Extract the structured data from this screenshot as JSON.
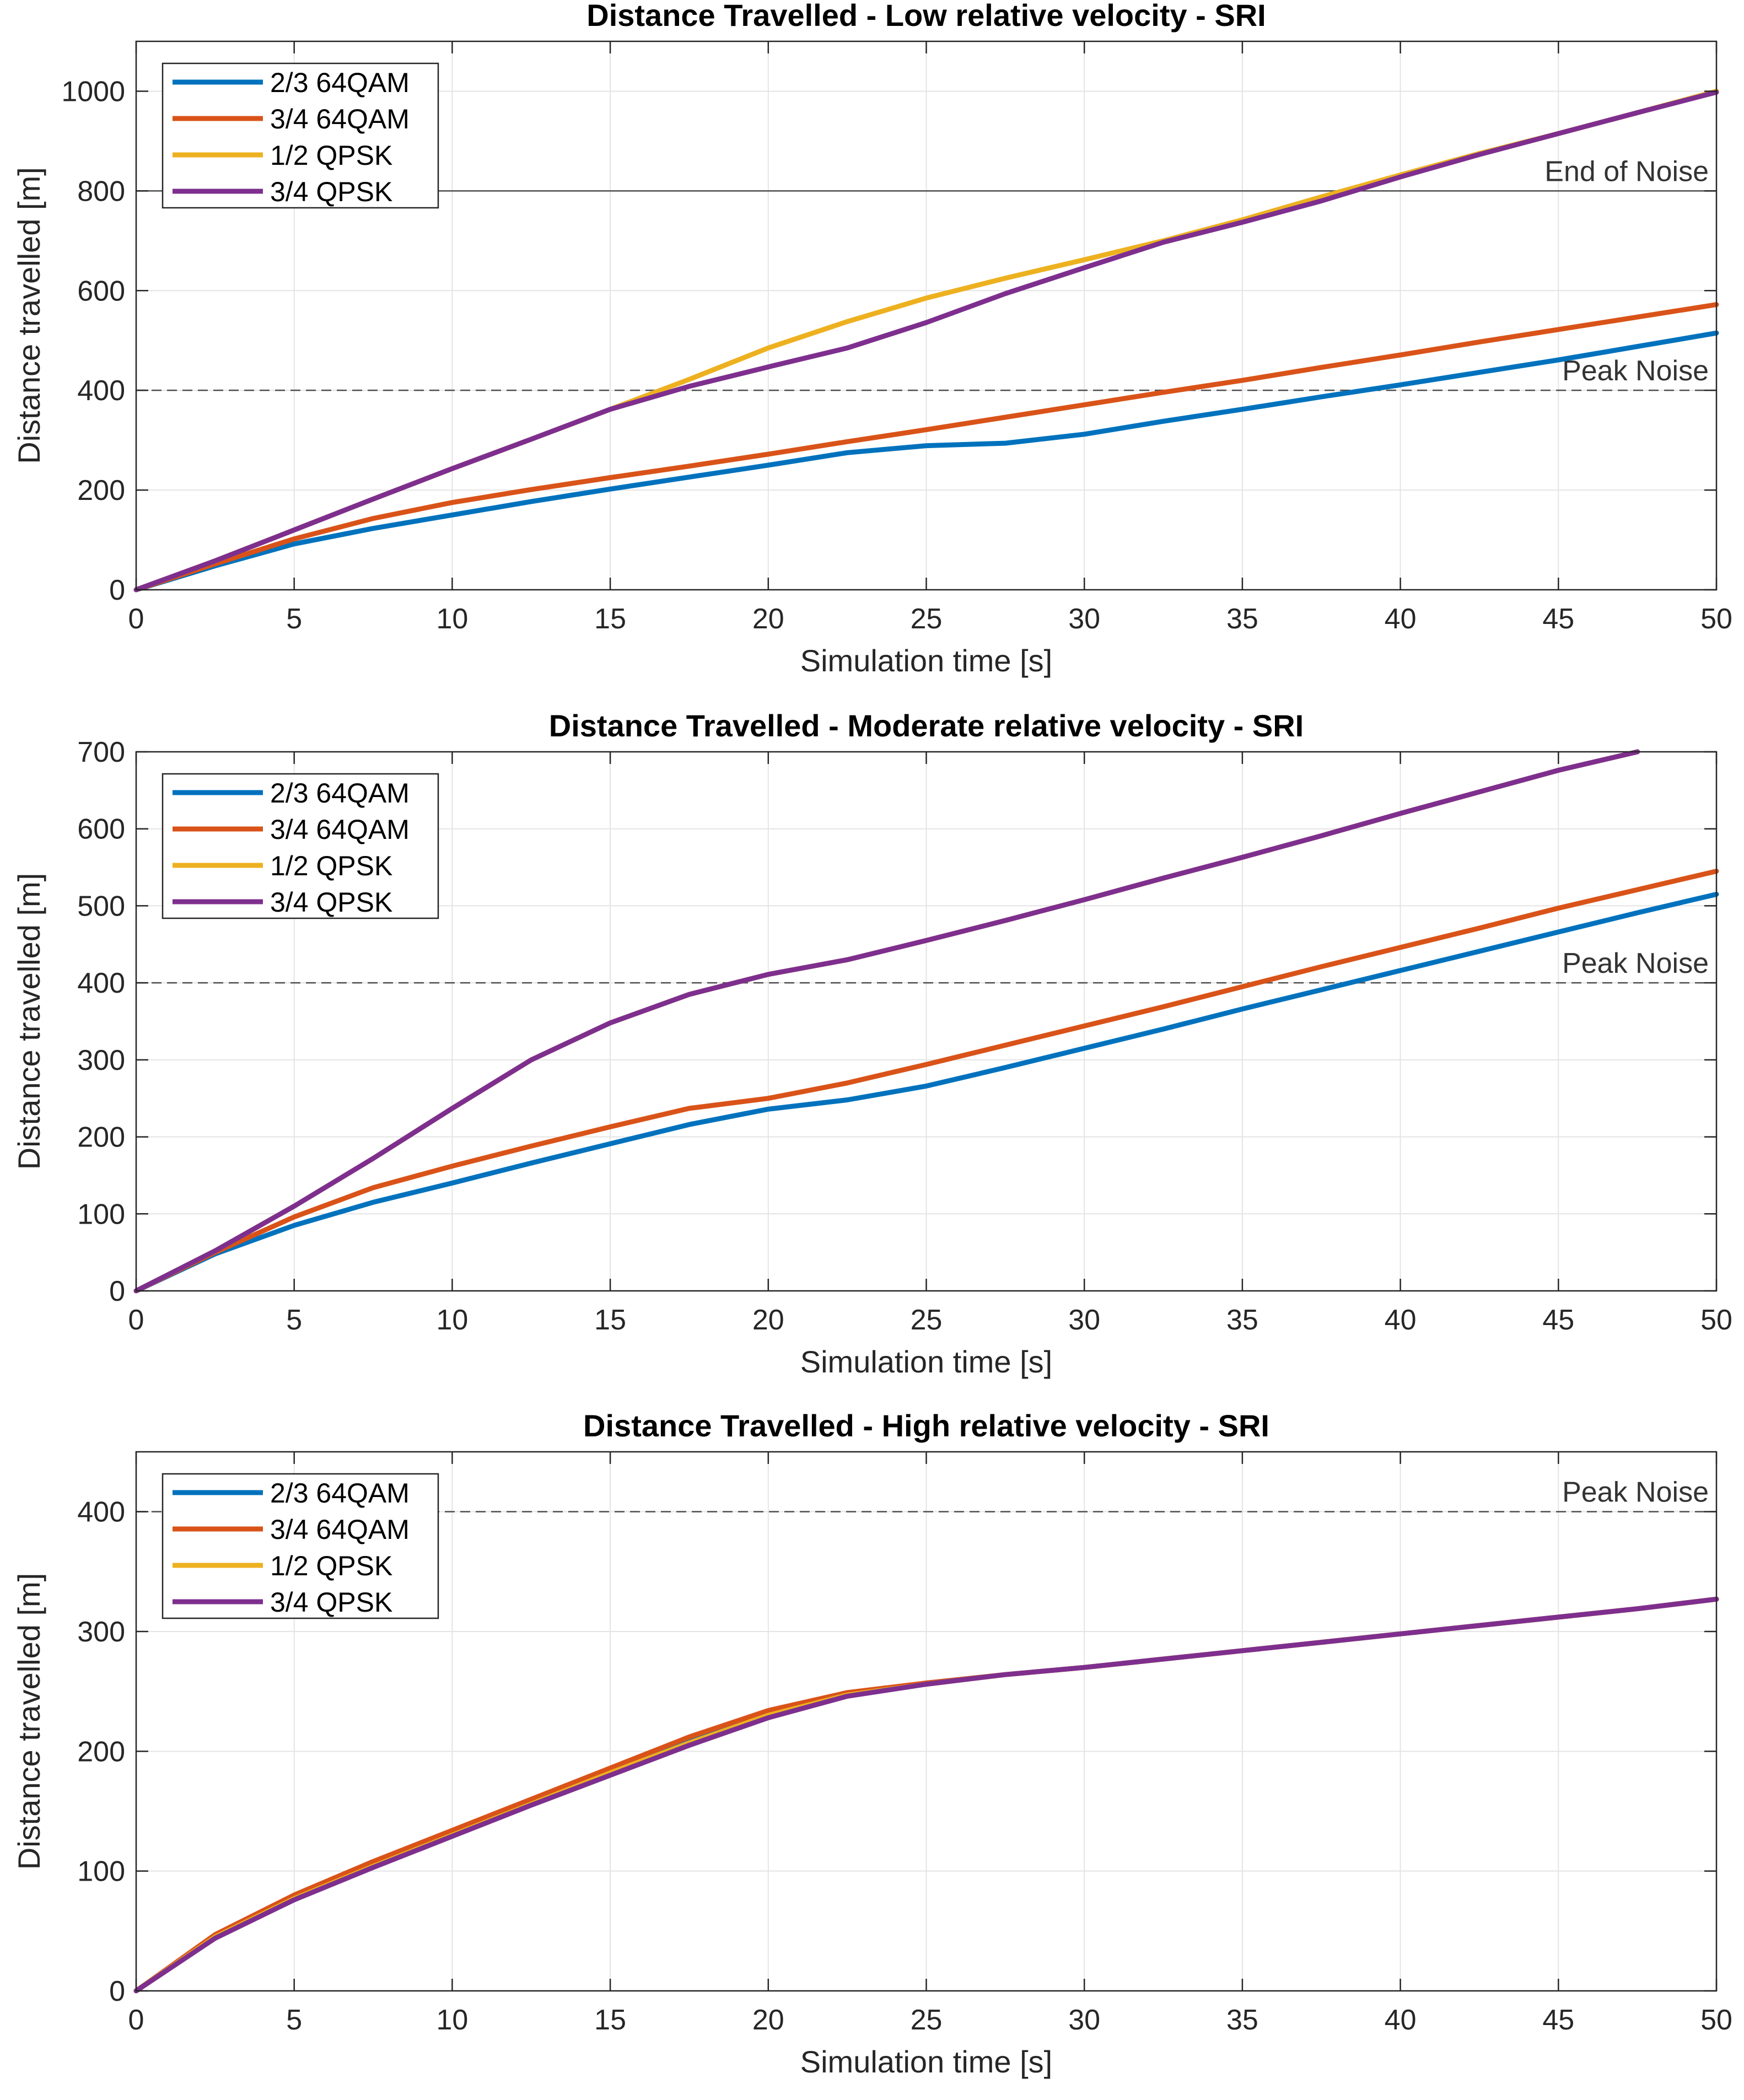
{
  "colors": {
    "s1": "#0072BD",
    "s2": "#D95319",
    "s3": "#EDB120",
    "s4": "#7E2F8E",
    "grid": "#e4e4e4",
    "axis": "#262626",
    "ref": "#4d4d4d"
  },
  "legend_position": "top-left",
  "chart_data": [
    {
      "type": "line",
      "title": "Distance Travelled - Low relative velocity - SRI",
      "xlabel": "Simulation time [s]",
      "ylabel": "Distance travelled [m]",
      "xlim": [
        0,
        50
      ],
      "ylim": [
        0,
        1100
      ],
      "xticks": [
        0,
        5,
        10,
        15,
        20,
        25,
        30,
        35,
        40,
        45,
        50
      ],
      "yticks": [
        0,
        200,
        400,
        600,
        800,
        1000
      ],
      "grid": true,
      "reference_lines": [
        {
          "y": 800,
          "label": "End of Noise",
          "style": "solid"
        },
        {
          "y": 400,
          "label": "Peak Noise",
          "style": "dashed"
        }
      ],
      "x": [
        0,
        2.5,
        5,
        7.5,
        10,
        12.5,
        15,
        17.5,
        20,
        22.5,
        25,
        27.5,
        30,
        32.5,
        35,
        37.5,
        40,
        42.5,
        45,
        47.5,
        50
      ],
      "series": [
        {
          "name": "2/3 64QAM",
          "color_key": "s1",
          "values": [
            0,
            48,
            92,
            123,
            150,
            177,
            202,
            226,
            250,
            275,
            289,
            294,
            312,
            338,
            362,
            387,
            411,
            436,
            461,
            488,
            515
          ]
        },
        {
          "name": "3/4 64QAM",
          "color_key": "s2",
          "values": [
            0,
            52,
            102,
            143,
            175,
            201,
            225,
            248,
            272,
            297,
            321,
            346,
            371,
            396,
            420,
            446,
            471,
            497,
            522,
            547,
            572
          ]
        },
        {
          "name": "1/2 QPSK",
          "color_key": "s3",
          "values": [
            0,
            58,
            120,
            182,
            243,
            302,
            362,
            422,
            485,
            538,
            585,
            625,
            662,
            700,
            742,
            788,
            832,
            875,
            915,
            957,
            1000
          ]
        },
        {
          "name": "3/4 QPSK",
          "color_key": "s4",
          "values": [
            0,
            58,
            120,
            182,
            243,
            302,
            362,
            408,
            447,
            485,
            536,
            594,
            646,
            697,
            737,
            780,
            828,
            873,
            915,
            957,
            998
          ]
        }
      ]
    },
    {
      "type": "line",
      "title": "Distance Travelled - Moderate relative velocity - SRI",
      "xlabel": "Simulation time [s]",
      "ylabel": "Distance travelled [m]",
      "xlim": [
        0,
        50
      ],
      "ylim": [
        0,
        700
      ],
      "xticks": [
        0,
        5,
        10,
        15,
        20,
        25,
        30,
        35,
        40,
        45,
        50
      ],
      "yticks": [
        0,
        100,
        200,
        300,
        400,
        500,
        600,
        700
      ],
      "grid": true,
      "reference_lines": [
        {
          "y": 400,
          "label": "Peak Noise",
          "style": "dashed"
        }
      ],
      "x": [
        0,
        2.5,
        5,
        7.5,
        10,
        12.5,
        15,
        17.5,
        20,
        22.5,
        25,
        27.5,
        30,
        32.5,
        35,
        37.5,
        40,
        42.5,
        45,
        47.5,
        50
      ],
      "series": [
        {
          "name": "2/3 64QAM",
          "color_key": "s1",
          "values": [
            0,
            48,
            85,
            115,
            140,
            166,
            191,
            216,
            236,
            248,
            266,
            290,
            315,
            340,
            366,
            391,
            416,
            441,
            466,
            491,
            515
          ]
        },
        {
          "name": "3/4 64QAM",
          "color_key": "s2",
          "values": [
            0,
            50,
            96,
            134,
            162,
            188,
            213,
            237,
            250,
            270,
            294,
            319,
            344,
            369,
            395,
            421,
            446,
            471,
            497,
            521,
            545
          ]
        },
        {
          "name": "1/2 QPSK",
          "color_key": "s3",
          "values": [
            0,
            52,
            110,
            172,
            237,
            300,
            348,
            385,
            411,
            430,
            455,
            481,
            508,
            536,
            563,
            591,
            620,
            648,
            676,
            700,
            null
          ]
        },
        {
          "name": "3/4 QPSK",
          "color_key": "s4",
          "values": [
            0,
            52,
            110,
            172,
            237,
            300,
            348,
            385,
            411,
            430,
            455,
            481,
            508,
            536,
            563,
            591,
            620,
            648,
            676,
            700,
            null
          ]
        }
      ]
    },
    {
      "type": "line",
      "title": "Distance Travelled - High relative velocity - SRI",
      "xlabel": "Simulation time [s]",
      "ylabel": "Distance travelled [m]",
      "xlim": [
        0,
        50
      ],
      "ylim": [
        0,
        450
      ],
      "xticks": [
        0,
        5,
        10,
        15,
        20,
        25,
        30,
        35,
        40,
        45,
        50
      ],
      "yticks": [
        0,
        100,
        200,
        300,
        400
      ],
      "grid": true,
      "reference_lines": [
        {
          "y": 400,
          "label": "Peak Noise",
          "style": "dashed"
        }
      ],
      "x": [
        0,
        2.5,
        5,
        7.5,
        10,
        12.5,
        15,
        17.5,
        20,
        22.5,
        25,
        27.5,
        30,
        32.5,
        35,
        37.5,
        40,
        42.5,
        45,
        47.5,
        50
      ],
      "series": [
        {
          "name": "2/3 64QAM",
          "color_key": "s1",
          "values": [
            0,
            46,
            78,
            106,
            132,
            158,
            184,
            210,
            232,
            248,
            257,
            264,
            270,
            277,
            284,
            291,
            298,
            305,
            312,
            319,
            327
          ]
        },
        {
          "name": "3/4 64QAM",
          "color_key": "s2",
          "values": [
            0,
            47,
            80,
            108,
            134,
            160,
            186,
            212,
            234,
            249,
            257,
            264,
            270,
            277,
            284,
            291,
            298,
            305,
            312,
            319,
            327
          ]
        },
        {
          "name": "1/2 QPSK",
          "color_key": "s3",
          "values": [
            0,
            45,
            77,
            104,
            130,
            156,
            182,
            207,
            230,
            247,
            256,
            264,
            270,
            277,
            284,
            291,
            298,
            305,
            312,
            319,
            327
          ]
        },
        {
          "name": "3/4 QPSK",
          "color_key": "s4",
          "values": [
            0,
            44,
            76,
            103,
            129,
            155,
            180,
            205,
            228,
            246,
            256,
            264,
            270,
            277,
            284,
            291,
            298,
            305,
            312,
            319,
            327
          ]
        }
      ]
    }
  ]
}
